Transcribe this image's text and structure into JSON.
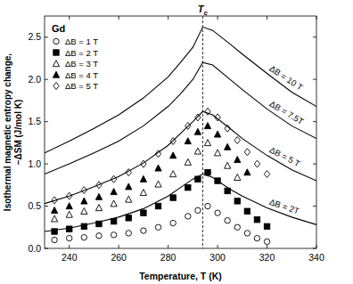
{
  "chart_data": {
    "type": "scatter",
    "title": "Gd",
    "xlabel": "Temperature, T (K)",
    "ylabel": "Isothermal magnetic entropy change,\n−ΔSM (J/mol K)",
    "xlim": [
      230,
      340
    ],
    "ylim": [
      0,
      2.75
    ],
    "xticks": [
      240,
      260,
      280,
      300,
      320,
      340
    ],
    "yticks": [
      {
        "value": 0,
        "label": "0.0"
      },
      0.5,
      {
        "value": 1,
        "label": "1.0"
      },
      1.5,
      {
        "value": 2,
        "label": "2.0"
      },
      2.5
    ],
    "legend": "upper left",
    "grid": false,
    "annotations": [
      {
        "text": "T",
        "subscript": "c",
        "x": 294,
        "line_style": "dashed"
      }
    ],
    "series": [
      {
        "name": "ΔB = 1 T",
        "type": "scatter",
        "marker": "circle-open",
        "color": "#000000",
        "x": [
          234,
          240,
          246,
          252,
          258,
          264,
          270,
          276,
          282,
          288,
          292,
          296,
          300,
          304,
          308,
          312,
          316,
          320
        ],
        "values": [
          0.1,
          0.12,
          0.13,
          0.15,
          0.16,
          0.18,
          0.21,
          0.25,
          0.3,
          0.38,
          0.45,
          0.5,
          0.42,
          0.33,
          0.25,
          0.18,
          0.12,
          0.08
        ]
      },
      {
        "name": "ΔB = 2 T",
        "type": "scatter",
        "marker": "square",
        "color": "#000000",
        "x": [
          234,
          240,
          246,
          252,
          258,
          264,
          270,
          276,
          282,
          288,
          292,
          296,
          300,
          304,
          308,
          312,
          316,
          320
        ],
        "values": [
          0.2,
          0.23,
          0.26,
          0.29,
          0.32,
          0.36,
          0.42,
          0.5,
          0.6,
          0.72,
          0.82,
          0.9,
          0.8,
          0.68,
          0.56,
          0.44,
          0.34,
          0.26
        ]
      },
      {
        "name": "ΔB = 3 T",
        "type": "scatter",
        "marker": "triangle-open",
        "color": "#000000",
        "x": [
          234,
          240,
          246,
          252,
          258,
          264,
          270,
          276,
          282,
          288,
          292,
          296,
          300,
          304,
          308,
          312,
          316,
          320
        ],
        "values": [
          0.35,
          0.4,
          0.44,
          0.48,
          0.53,
          0.58,
          0.66,
          0.76,
          0.88,
          1.02,
          1.15,
          1.25,
          1.13,
          0.98,
          0.84,
          null,
          null,
          null
        ]
      },
      {
        "name": "ΔB = 4 T",
        "type": "scatter",
        "marker": "triangle",
        "color": "#000000",
        "x": [
          234,
          240,
          246,
          252,
          258,
          264,
          270,
          276,
          282,
          288,
          292,
          296,
          300,
          304,
          308,
          312,
          316,
          320
        ],
        "values": [
          0.45,
          0.5,
          0.56,
          0.61,
          0.67,
          0.73,
          0.82,
          0.95,
          1.1,
          1.27,
          1.38,
          1.45,
          1.35,
          1.2,
          1.05,
          0.9,
          null,
          null
        ]
      },
      {
        "name": "ΔB = 5 T",
        "type": "scatter",
        "marker": "diamond-open",
        "color": "#000000",
        "x": [
          234,
          240,
          246,
          252,
          258,
          264,
          270,
          276,
          282,
          288,
          292,
          296,
          300,
          304,
          308,
          312,
          316,
          320
        ],
        "values": [
          0.57,
          0.62,
          0.69,
          0.75,
          0.82,
          0.9,
          1.0,
          1.12,
          1.27,
          1.45,
          1.55,
          1.62,
          1.55,
          1.42,
          1.28,
          1.14,
          1.0,
          0.88
        ]
      },
      {
        "name": "ΔB = 2T",
        "type": "line",
        "color": "#000000",
        "line_style": "solid",
        "x": [
          230,
          240,
          250,
          260,
          270,
          280,
          285,
          290,
          294,
          298,
          305,
          310,
          320,
          330,
          340
        ],
        "values": [
          0.2,
          0.24,
          0.3,
          0.37,
          0.47,
          0.62,
          0.72,
          0.82,
          0.88,
          0.84,
          0.7,
          0.62,
          0.48,
          0.37,
          0.28
        ]
      },
      {
        "name": "ΔB = 5 T",
        "type": "line",
        "color": "#000000",
        "line_style": "solid",
        "x": [
          230,
          240,
          250,
          260,
          270,
          280,
          285,
          290,
          294,
          298,
          305,
          310,
          320,
          330,
          340
        ],
        "values": [
          0.53,
          0.62,
          0.73,
          0.85,
          1.01,
          1.22,
          1.36,
          1.5,
          1.62,
          1.58,
          1.42,
          1.3,
          1.1,
          0.93,
          0.8
        ]
      },
      {
        "name": "ΔB = 7.5T",
        "type": "line",
        "color": "#000000",
        "line_style": "solid",
        "x": [
          230,
          240,
          250,
          260,
          270,
          280,
          285,
          290,
          294,
          298,
          305,
          310,
          320,
          330,
          340
        ],
        "values": [
          0.88,
          1.0,
          1.13,
          1.27,
          1.45,
          1.68,
          1.83,
          2.0,
          2.2,
          2.17,
          2.0,
          1.88,
          1.65,
          1.45,
          1.3
        ]
      },
      {
        "name": "ΔB = 10 T",
        "type": "line",
        "color": "#000000",
        "line_style": "solid",
        "x": [
          230,
          240,
          250,
          260,
          270,
          280,
          285,
          290,
          294,
          298,
          305,
          310,
          320,
          330,
          340
        ],
        "values": [
          1.13,
          1.27,
          1.42,
          1.58,
          1.78,
          2.03,
          2.2,
          2.38,
          2.62,
          2.58,
          2.42,
          2.3,
          2.07,
          1.85,
          1.68
        ]
      }
    ]
  }
}
